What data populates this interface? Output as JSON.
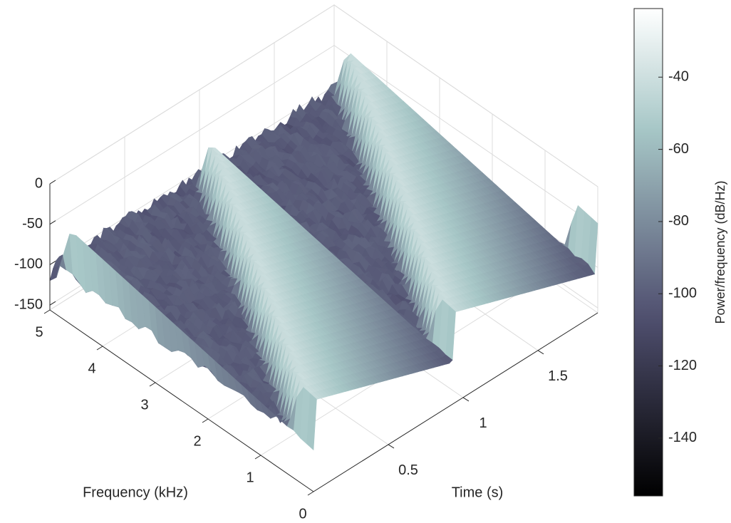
{
  "chart_data": {
    "type": "surface",
    "xlabel": "Time (s)",
    "ylabel": "Frequency (kHz)",
    "colorbar_label": "Power/frequency (dB/Hz)",
    "xlim": [
      0,
      1.9
    ],
    "xticks": [
      0.5,
      1,
      1.5
    ],
    "ylim": [
      0,
      5
    ],
    "yticks": [
      0,
      1,
      2,
      3,
      4,
      5
    ],
    "zlim": [
      -156,
      0
    ],
    "zticks": [
      -150,
      -100,
      -50,
      0
    ],
    "clim": [
      -156,
      -21
    ],
    "cticks": [
      -140,
      -120,
      -100,
      -80,
      -60,
      -40
    ],
    "colormap": "bone",
    "grid": true
  }
}
